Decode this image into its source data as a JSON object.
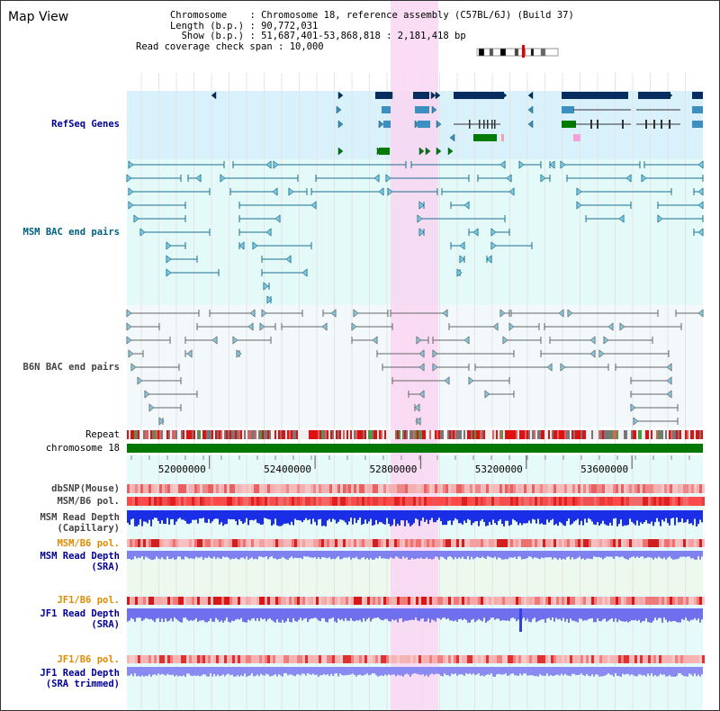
{
  "page": {
    "title": "Map View"
  },
  "info": {
    "chromosome_label": "Chromosome",
    "chromosome_value": "Chromosome 18, reference assembly (C57BL/6J) (Build 37)",
    "length_label": "Length (b.p.)",
    "length_value": "90,772,031",
    "show_label": "Show (b.p.)",
    "show_value": "51,687,401-53,868,818 : 2,181,418 bp",
    "coverage_label": "Read coverage check span",
    "coverage_value": "10,000"
  },
  "tracks": {
    "refseq": "RefSeq Genes",
    "msm_bac": "MSM BAC end pairs",
    "b6n_bac": "B6N BAC end pairs",
    "repeat": "Repeat",
    "chromosome": "chromosome 18",
    "dbsnp": "dbSNP(Mouse)",
    "msm_b6_pol_1": "MSM/B6 pol.",
    "msm_read_depth_cap_1": "MSM Read Depth",
    "msm_read_depth_cap_2": "(Capillary)",
    "msm_b6_pol_2": "MSM/B6 pol.",
    "msm_read_depth_sra_1": "MSM Read Depth",
    "msm_read_depth_sra_2": "(SRA)",
    "jf1_b6_pol_1": "JF1/B6 pol.",
    "jf1_read_depth_sra_1": "JF1 Read Depth",
    "jf1_read_depth_sra_2": "(SRA)",
    "jf1_b6_pol_2": "JF1/B6 pol.",
    "jf1_read_depth_trim_1": "JF1 Read Depth",
    "jf1_read_depth_trim_2": "(SRA trimmed)"
  },
  "axis": {
    "ticks": [
      "52000000",
      "52400000",
      "52800000",
      "53200000",
      "53600000"
    ],
    "tick_values": [
      52000000,
      52400000,
      52800000,
      53200000,
      53600000
    ],
    "range": [
      51687401,
      53868818
    ]
  },
  "colors": {
    "refseq_bg": "#d9f1fb",
    "msm_bg": "#e3faf9",
    "b6n_bg": "#f3f8fa",
    "highlight": "#f9d6f2",
    "msm_line": "#1a6f8f",
    "b6n_line": "#666666",
    "chromosome_bar": "#007700",
    "gene_dark": "#062c60",
    "gene_mid": "#3b8fc1",
    "gene_green": "#007a00",
    "label_blue": "#000099",
    "label_teal": "#006080",
    "label_gray": "#444444",
    "label_orange": "#e08a00"
  }
}
